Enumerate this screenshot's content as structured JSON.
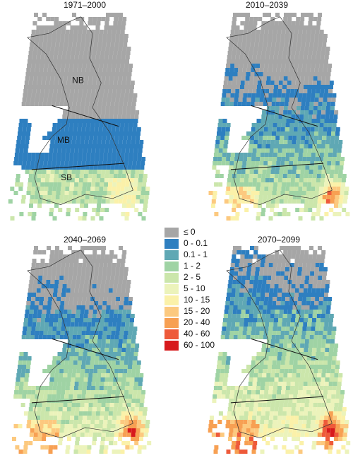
{
  "panels": [
    {
      "title": "1971–2000",
      "regions": [
        "NB",
        "MB",
        "SB"
      ]
    },
    {
      "title": "2010–2039"
    },
    {
      "title": "2040–2069"
    },
    {
      "title": "2070–2099"
    }
  ],
  "legend": [
    {
      "label": "≤ 0",
      "color": "#a6a6a6"
    },
    {
      "label": "0 - 0.1",
      "color": "#2e7fc0"
    },
    {
      "label": "0.1 - 1",
      "color": "#5fa8b4"
    },
    {
      "label": "1 - 2",
      "color": "#9fd3a4"
    },
    {
      "label": "2 - 5",
      "color": "#cbe6ab"
    },
    {
      "label": "5 - 10",
      "color": "#ecf3bb"
    },
    {
      "label": "10 - 15",
      "color": "#fbf1a9"
    },
    {
      "label": "15 - 20",
      "color": "#fcc97f"
    },
    {
      "label": "20 - 40",
      "color": "#f7a053"
    },
    {
      "label": "40 - 60",
      "color": "#ee5a3a"
    },
    {
      "label": "60 - 100",
      "color": "#d7191c"
    }
  ]
}
